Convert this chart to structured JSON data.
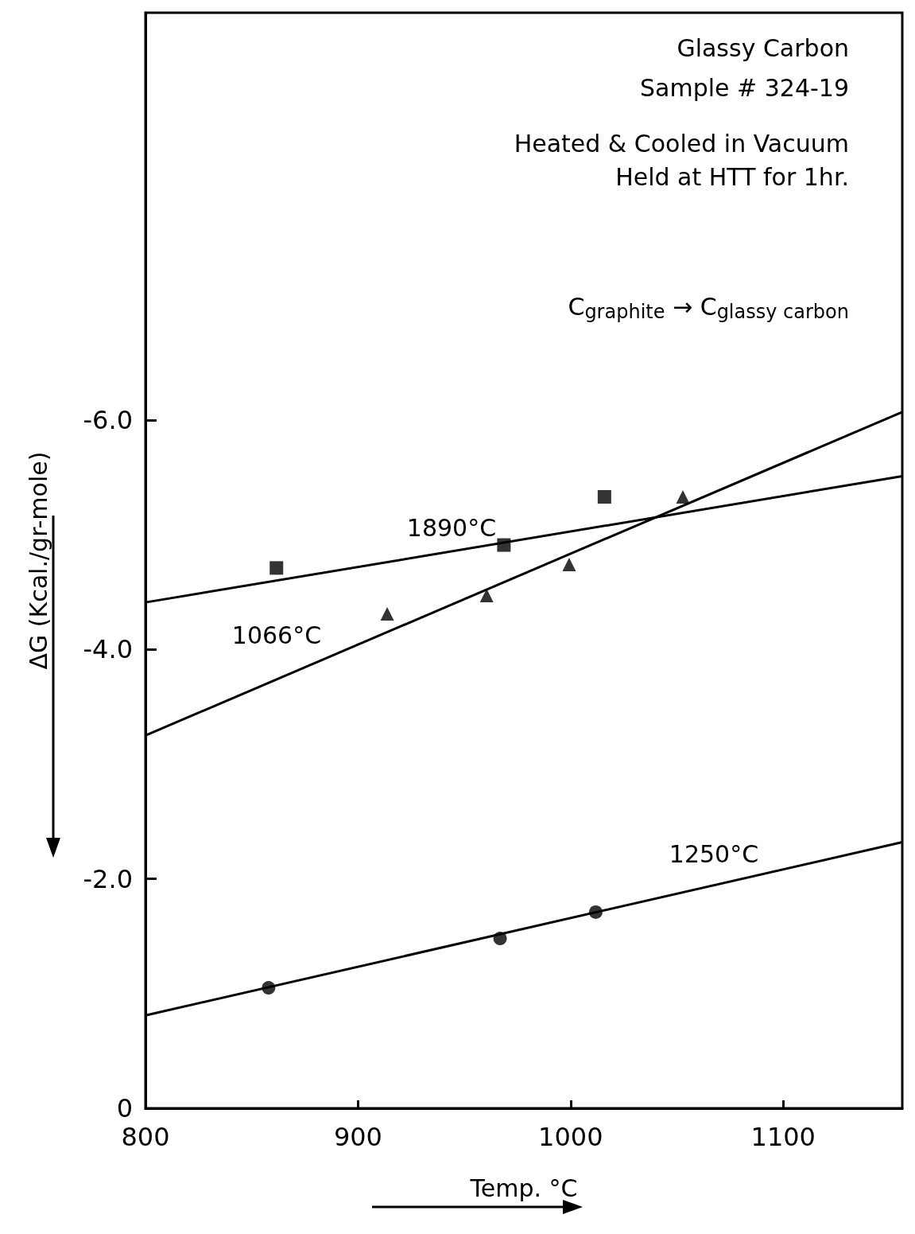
{
  "chart_data": {
    "type": "scatter",
    "xlabel": "Temp. °C",
    "ylabel": "ΔG (Kcal./gr-mole)",
    "xlim": [
      800,
      1156
    ],
    "ylim": [
      0,
      -9.55
    ],
    "xticks": [
      800,
      900,
      1000,
      1100
    ],
    "yticks": [
      0,
      {
        "value": -2,
        "label": "-2.0"
      },
      {
        "value": -4,
        "label": "-4.0"
      },
      {
        "value": -6,
        "label": "-6.0"
      }
    ],
    "grid": false,
    "series": [
      {
        "marker": "square",
        "color": "#000000",
        "x": [
          861.6,
          968.6,
          1015.9
        ],
        "values": [
          -4.71,
          -4.91,
          -5.33
        ]
      },
      {
        "type": "line",
        "marker": "none",
        "color": "#000000",
        "x": [
          800,
          1156
        ],
        "values": [
          -4.41,
          -5.51
        ]
      },
      {
        "marker": "triangle",
        "color": "#000000",
        "x": [
          913.7,
          960.5,
          999.3,
          1052.8
        ],
        "values": [
          -4.31,
          -4.47,
          -4.74,
          -5.33
        ]
      },
      {
        "type": "line",
        "marker": "none",
        "color": "#000000",
        "x": [
          800,
          1156
        ],
        "values": [
          -3.25,
          -6.07
        ]
      },
      {
        "marker": "circle",
        "color": "#000000",
        "x": [
          857.9,
          966.8,
          1011.8
        ],
        "values": [
          -1.05,
          -1.48,
          -1.71
        ]
      },
      {
        "type": "line",
        "marker": "none",
        "color": "#000000",
        "x": [
          800,
          1156
        ],
        "values": [
          -0.81,
          -2.32
        ]
      }
    ],
    "annotations": [
      "Glassy Carbon",
      "Sample # 324-19",
      "Heated & Cooled in Vacuum",
      "Held at HTT for 1hr.",
      "C$_{graphite}$ → C$_{glassy carbon}$",
      "1890°C",
      "1066°C",
      "1250°C"
    ]
  }
}
